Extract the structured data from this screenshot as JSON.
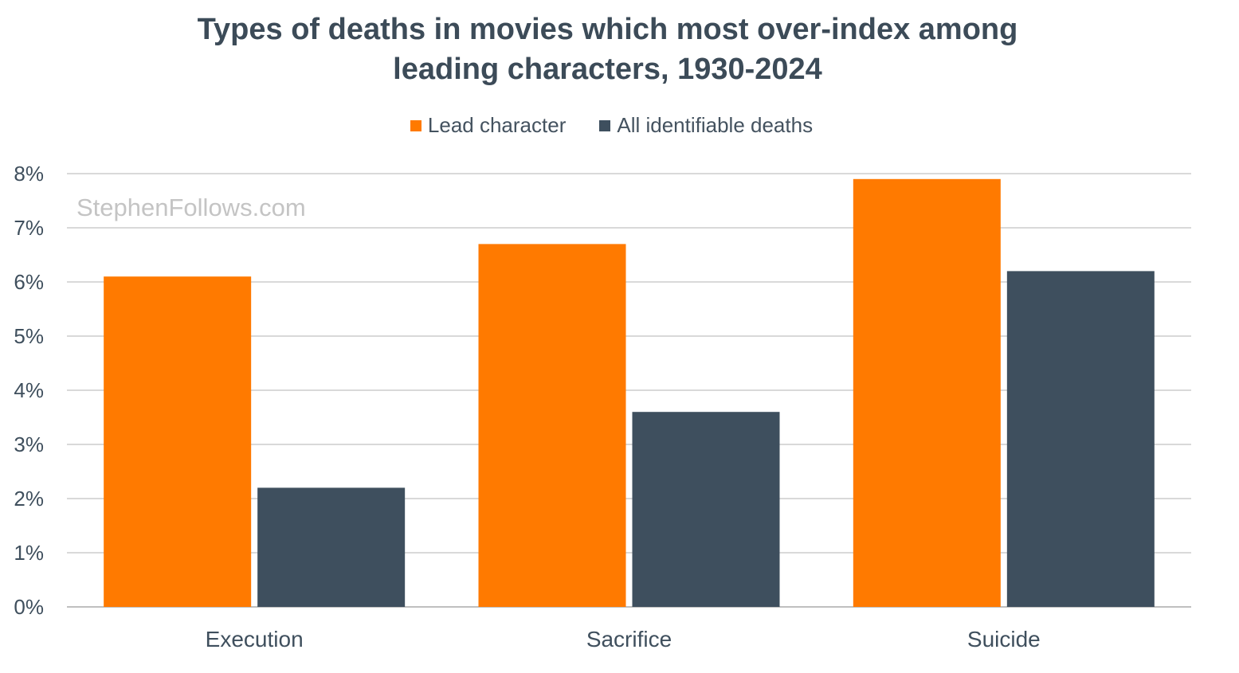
{
  "title_lines": [
    "Types of deaths in movies which most over-index among",
    "leading characters, 1930-2024"
  ],
  "watermark": "StephenFollows.com",
  "colors": {
    "lead": "#ff7a00",
    "all": "#3e4f5e",
    "grid": "#d9d9d9",
    "axis": "#bfbfbf"
  },
  "legend": [
    {
      "label": "Lead character",
      "color": "#ff7a00"
    },
    {
      "label": "All identifiable deaths",
      "color": "#3e4f5e"
    }
  ],
  "chart_data": {
    "type": "bar",
    "title": "Types of deaths in movies which most over-index among leading characters, 1930-2024",
    "categories": [
      "Execution",
      "Sacrifice",
      "Suicide"
    ],
    "series": [
      {
        "name": "Lead character",
        "values": [
          6.1,
          6.7,
          7.9
        ]
      },
      {
        "name": "All identifiable deaths",
        "values": [
          2.2,
          3.6,
          6.2
        ]
      }
    ],
    "ylim": [
      0,
      8
    ],
    "yticks": [
      "0%",
      "1%",
      "2%",
      "3%",
      "4%",
      "5%",
      "6%",
      "7%",
      "8%"
    ],
    "y_unit": "%",
    "grid": true,
    "legend_position": "top"
  }
}
